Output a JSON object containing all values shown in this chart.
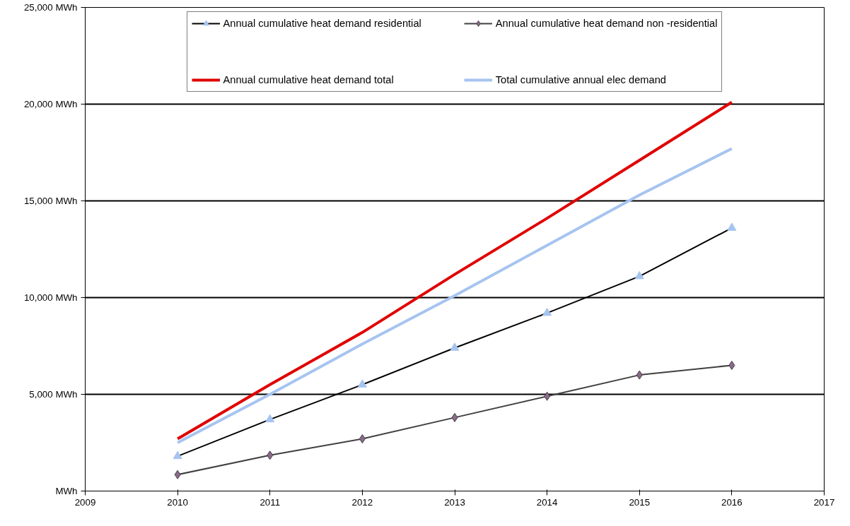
{
  "chart_data": {
    "type": "line",
    "x": [
      2010,
      2011,
      2012,
      2013,
      2014,
      2015,
      2016
    ],
    "xlim": [
      2009,
      2017
    ],
    "xticks": [
      2009,
      2010,
      2011,
      2012,
      2013,
      2014,
      2015,
      2016,
      2017
    ],
    "ylim": [
      0,
      25000
    ],
    "yticks": [
      {
        "value": 0,
        "label": "MWh"
      },
      {
        "value": 5000,
        "label": "5,000 MWh"
      },
      {
        "value": 10000,
        "label": "10,000 MWh"
      },
      {
        "value": 15000,
        "label": "15,000 MWh"
      },
      {
        "value": 20000,
        "label": "20,000 MWh"
      },
      {
        "value": 25000,
        "label": "25,000 MWh"
      }
    ],
    "grid": "y",
    "legend": "top",
    "series": [
      {
        "name": "Annual cumulative heat demand residential",
        "color": "#000000",
        "marker": "triangle",
        "values": [
          1800,
          3700,
          5500,
          7400,
          9200,
          11100,
          13600
        ]
      },
      {
        "name": "Annual cumulative heat demand non -residential",
        "color": "#404040",
        "marker": "diamond",
        "values": [
          850,
          1850,
          2700,
          3800,
          4900,
          6000,
          6500
        ]
      },
      {
        "name": "Annual cumulative heat demand total",
        "color": "#e00000",
        "marker": "none",
        "values": [
          2700,
          5500,
          8200,
          11200,
          14100,
          17100,
          20100
        ]
      },
      {
        "name": "Total cumulative annual elec demand",
        "color": "#a6c4f0",
        "marker": "none",
        "values": [
          2500,
          5000,
          7600,
          10100,
          12700,
          15300,
          17700
        ]
      }
    ]
  }
}
